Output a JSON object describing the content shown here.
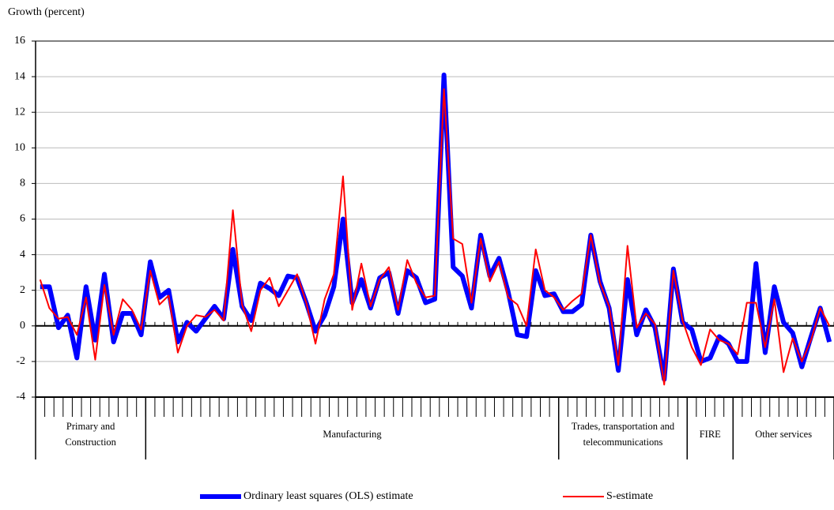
{
  "chart_data": {
    "type": "line",
    "y_label": "Growth (percent)",
    "categories": [
      null,
      null,
      null,
      null,
      null,
      null,
      null,
      null,
      null,
      null,
      null,
      null,
      null,
      null,
      null,
      null,
      null,
      null,
      null,
      null,
      null,
      null,
      null,
      null,
      null,
      null,
      null,
      null,
      null,
      null,
      null,
      null,
      null,
      null,
      null,
      null,
      null,
      null,
      null,
      null,
      null,
      null,
      null,
      null,
      null,
      null,
      null,
      null,
      null,
      null,
      null,
      null,
      null,
      null,
      null,
      null,
      null,
      null,
      null,
      null,
      null,
      null,
      null,
      null,
      null,
      null,
      null,
      null,
      null,
      null,
      null,
      null,
      null,
      null,
      null,
      null,
      null,
      null,
      null,
      null,
      null,
      null,
      null,
      null,
      null,
      null,
      null
    ],
    "category_groups": [
      {
        "label": [
          "Primary and",
          "Construction"
        ],
        "size": 12
      },
      {
        "label": [
          "Manufacturing"
        ],
        "size": 45
      },
      {
        "label": [
          "Trades, transportation and",
          "telecommunications"
        ],
        "size": 14
      },
      {
        "label": [
          "FIRE"
        ],
        "size": 5
      },
      {
        "label": [
          "Other services"
        ],
        "size": 11
      }
    ],
    "series": [
      {
        "name": "Ordinary least squares (OLS) estimate",
        "color": "#0000ff",
        "width": 6,
        "values": [
          2.2,
          2.2,
          -0.1,
          0.6,
          -1.8,
          2.2,
          -0.8,
          2.9,
          -0.9,
          0.7,
          0.7,
          -0.5,
          3.6,
          1.6,
          2.0,
          -0.9,
          0.2,
          -0.3,
          0.4,
          1.1,
          0.4,
          4.3,
          1.1,
          0.3,
          2.4,
          2.1,
          1.7,
          2.8,
          2.7,
          1.3,
          -0.3,
          0.6,
          2.2,
          6.0,
          1.3,
          2.6,
          1.0,
          2.7,
          3.0,
          0.7,
          3.1,
          2.7,
          1.3,
          1.5,
          14.1,
          3.3,
          2.8,
          1.0,
          5.1,
          2.8,
          3.8,
          1.9,
          -0.5,
          -0.6,
          3.1,
          1.7,
          1.8,
          0.8,
          0.8,
          1.2,
          5.1,
          2.5,
          1.0,
          -2.5,
          2.6,
          -0.5,
          0.9,
          -0.1,
          -3.0,
          3.2,
          0.2,
          -0.2,
          -2.0,
          -1.8,
          -0.6,
          -1.0,
          -2.0,
          -2.0,
          3.5,
          -1.5,
          2.2,
          0.2,
          -0.4,
          -2.3,
          -0.6,
          1.0,
          -0.9
        ]
      },
      {
        "name": "S-estimate",
        "color": "#ff0000",
        "width": 2,
        "values": [
          2.6,
          1.0,
          0.4,
          0.5,
          -0.5,
          1.6,
          -1.9,
          2.3,
          -0.5,
          1.5,
          0.9,
          -0.2,
          3.1,
          1.2,
          1.7,
          -1.5,
          0.0,
          0.6,
          0.5,
          0.9,
          0.3,
          6.5,
          1.2,
          -0.3,
          2.0,
          2.7,
          1.1,
          2.0,
          2.9,
          1.3,
          -1.0,
          1.5,
          2.9,
          8.4,
          0.9,
          3.5,
          1.1,
          2.6,
          3.3,
          0.9,
          3.7,
          2.4,
          1.6,
          1.7,
          13.3,
          4.9,
          4.6,
          1.3,
          4.9,
          2.5,
          3.6,
          1.6,
          1.2,
          0.0,
          4.3,
          2.0,
          1.6,
          0.9,
          1.4,
          1.8,
          5.1,
          2.4,
          1.1,
          -2.2,
          4.5,
          -0.1,
          0.7,
          0.1,
          -3.3,
          3.1,
          0.3,
          -1.2,
          -2.2,
          -0.2,
          -0.8,
          -1.0,
          -1.6,
          1.3,
          1.3,
          -1.2,
          1.5,
          -2.6,
          -0.7,
          -2.0,
          -0.8,
          1.0,
          0.0
        ]
      }
    ],
    "ylim": [
      -4,
      16
    ],
    "yticks": [
      -4,
      -2,
      0,
      2,
      4,
      6,
      8,
      10,
      12,
      14,
      16
    ],
    "grid": true,
    "legend": "bottom"
  }
}
